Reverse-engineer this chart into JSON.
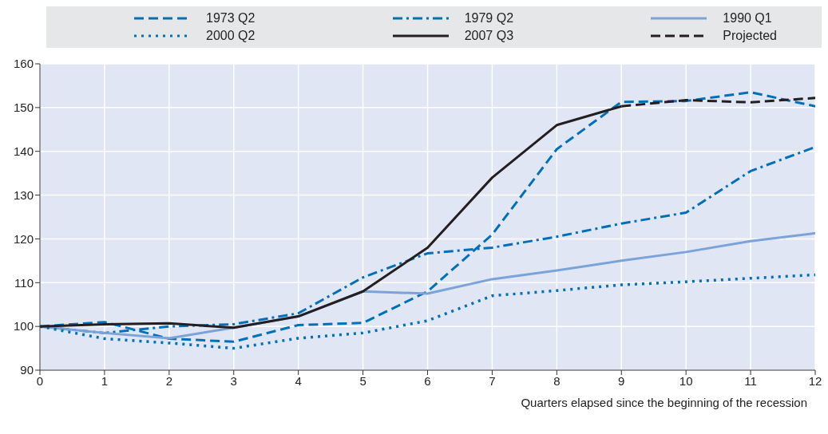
{
  "chart_data": {
    "type": "line",
    "xlabel": "Quarters elapsed since the beginning of the recession",
    "x": [
      0,
      1,
      2,
      3,
      4,
      5,
      6,
      7,
      8,
      9,
      10,
      11,
      12
    ],
    "series": [
      {
        "name": "1973 Q2",
        "color": "#0070b8",
        "line_style": "dashed",
        "values": [
          100,
          101,
          97.2,
          96.5,
          100.3,
          100.8,
          108,
          121,
          140.5,
          151.3,
          151.5,
          153.5,
          150.3
        ]
      },
      {
        "name": "1979 Q2",
        "color": "#0070b8",
        "line_style": "dashdot",
        "values": [
          100,
          98.5,
          100,
          100.5,
          103,
          111.2,
          116.7,
          118,
          120.5,
          123.5,
          126,
          135.5,
          141
        ]
      },
      {
        "name": "1990 Q1",
        "color": "#7ba3d8",
        "line_style": "solid",
        "values": [
          100,
          98.5,
          97.3,
          99.7,
          102.3,
          108,
          107.5,
          110.8,
          112.8,
          115,
          117,
          119.5,
          121.3
        ]
      },
      {
        "name": "2000 Q2",
        "color": "#0070b8",
        "line_style": "dotted",
        "values": [
          100,
          97.2,
          96.2,
          95,
          97.3,
          98.5,
          101.3,
          107,
          108.2,
          109.5,
          110.2,
          111,
          111.8
        ]
      },
      {
        "name": "2007 Q3",
        "color": "#231f20",
        "line_style": "solid",
        "values": [
          100,
          100.5,
          100.7,
          99.7,
          102.3,
          108,
          118,
          134,
          146,
          150.3,
          null,
          null,
          null
        ]
      },
      {
        "name": "Projected",
        "color": "#231f20",
        "line_style": "dashed",
        "values": [
          null,
          null,
          null,
          null,
          null,
          null,
          null,
          null,
          null,
          150.3,
          151.7,
          151.2,
          152.2
        ]
      }
    ],
    "xlim": [
      0,
      12
    ],
    "xticks": [
      0,
      1,
      2,
      3,
      4,
      5,
      6,
      7,
      8,
      9,
      10,
      11,
      12
    ],
    "ylim": [
      90,
      160
    ],
    "yticks": [
      90,
      100,
      110,
      120,
      130,
      140,
      150,
      160
    ],
    "grid": true,
    "legend": "top",
    "marker": "none"
  }
}
